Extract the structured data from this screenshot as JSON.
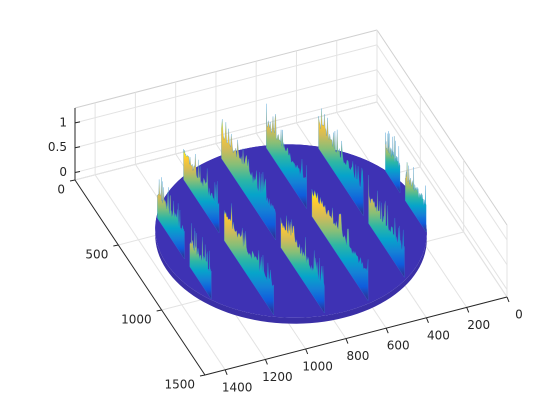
{
  "chart_data": {
    "type": "surface",
    "xlim": [
      0,
      1500
    ],
    "ylim": [
      0,
      1500
    ],
    "zlim": [
      -0.15,
      1.3
    ],
    "xticks": [
      0,
      200,
      400,
      600,
      800,
      1000,
      1200,
      1400
    ],
    "yticks": [
      0,
      500,
      1000,
      1500
    ],
    "zticks": [
      0,
      0.5,
      1
    ],
    "grid": true,
    "colormap": [
      "#352a87",
      "#0f5cdd",
      "#1481d6",
      "#06a4ca",
      "#2eb7a4",
      "#87bf77",
      "#d1bb59",
      "#fec832",
      "#f9fb0e"
    ]
  }
}
